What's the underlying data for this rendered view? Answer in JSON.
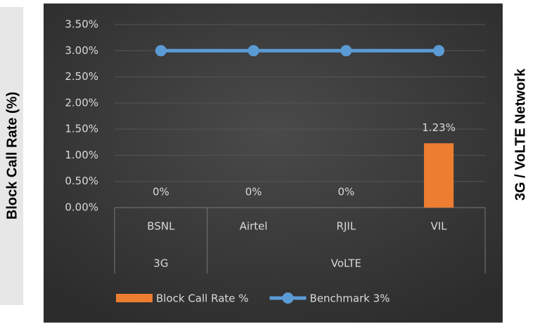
{
  "chart_data": {
    "type": "bar",
    "y_label": "Block Call Rate (%)",
    "x_label": "3G / VoLTE Network",
    "categories": [
      "BSNL",
      "Airtel",
      "RJIL",
      "VIL"
    ],
    "category_groups": [
      {
        "label": "3G",
        "span": 1
      },
      {
        "label": "VoLTE",
        "span": 3
      }
    ],
    "series": [
      {
        "name": "Block Call Rate %",
        "type": "bar",
        "color": "#ed7d31",
        "values": [
          0,
          0,
          0,
          1.23
        ],
        "value_labels": [
          "0%",
          "0%",
          "0%",
          "1.23%"
        ]
      },
      {
        "name": "Benchmark 3%",
        "type": "line",
        "color": "#5b9bd5",
        "values": [
          3,
          3,
          3,
          3
        ]
      }
    ],
    "ylim": [
      0,
      3.5
    ],
    "yticks": [
      {
        "value": 0,
        "label": "0.00%"
      },
      {
        "value": 0.5,
        "label": "0.50%"
      },
      {
        "value": 1,
        "label": "1.00%"
      },
      {
        "value": 1.5,
        "label": "1.50%"
      },
      {
        "value": 2,
        "label": "2.00%"
      },
      {
        "value": 2.5,
        "label": "2.50%"
      },
      {
        "value": 3,
        "label": "3.00%"
      },
      {
        "value": 3.5,
        "label": "3.50%"
      }
    ],
    "grid": true
  }
}
